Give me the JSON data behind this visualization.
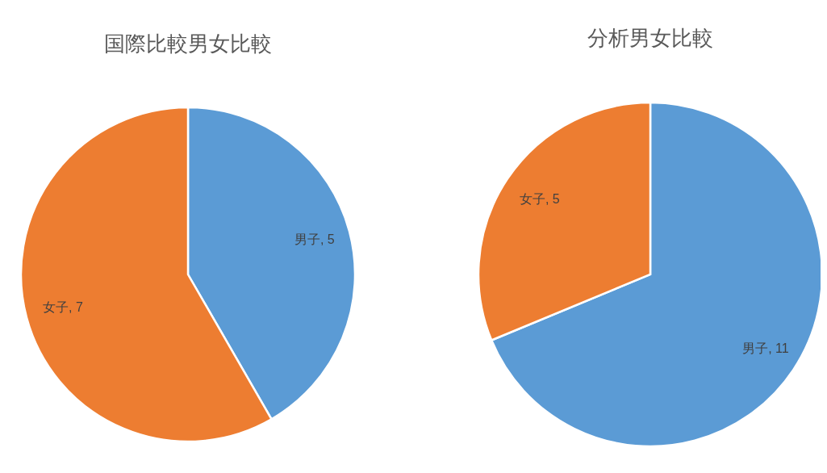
{
  "chart_data": [
    {
      "type": "pie",
      "title": "国際比較男女比較",
      "categories": [
        "男子",
        "女子"
      ],
      "values": [
        5,
        7
      ],
      "colors": [
        "#5b9bd5",
        "#ed7d31"
      ],
      "value_labels": [
        ", 5",
        ", 7"
      ]
    },
    {
      "type": "pie",
      "title": "分析男女比較",
      "categories": [
        "男子",
        "女子"
      ],
      "values": [
        11,
        5
      ],
      "colors": [
        "#5b9bd5",
        "#ed7d31"
      ],
      "value_labels": [
        ", 11",
        ", 5"
      ]
    }
  ]
}
